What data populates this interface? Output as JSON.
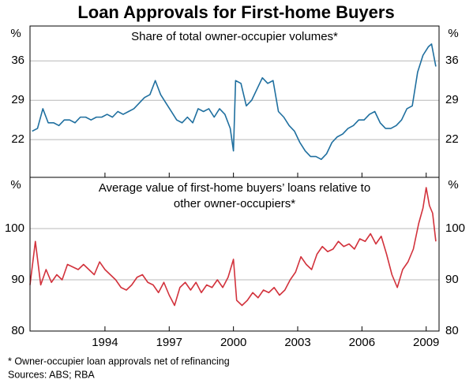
{
  "title": "Loan Approvals for First-home Buyers",
  "footnote": "*   Owner-occupier loan approvals net of refinancing",
  "sources": "Sources: ABS; RBA",
  "chart_data": [
    {
      "type": "line",
      "title": [
        "Share of total owner-occupier volumes*"
      ],
      "unit": "%",
      "xlim": [
        1990.5,
        2009.6
      ],
      "xticks": [
        1994,
        1997,
        2000,
        2003,
        2006,
        2009
      ],
      "show_xtick_labels": false,
      "ylim": [
        15.3,
        42.2
      ],
      "yticks": [
        22,
        29,
        36
      ],
      "grid": true,
      "series": [
        {
          "color": "#1f6f9f",
          "x": [
            1990.6,
            1990.85,
            1991.1,
            1991.35,
            1991.6,
            1991.85,
            1992.1,
            1992.35,
            1992.6,
            1992.85,
            1993.1,
            1993.35,
            1993.6,
            1993.85,
            1994.1,
            1994.35,
            1994.6,
            1994.85,
            1995.1,
            1995.35,
            1995.6,
            1995.85,
            1996.1,
            1996.35,
            1996.6,
            1996.85,
            1997.1,
            1997.35,
            1997.6,
            1997.85,
            1998.1,
            1998.35,
            1998.6,
            1998.85,
            1999.1,
            1999.35,
            1999.6,
            1999.85,
            2000.0,
            2000.1,
            2000.35,
            2000.6,
            2000.85,
            2001.1,
            2001.35,
            2001.6,
            2001.85,
            2002.1,
            2002.35,
            2002.6,
            2002.85,
            2003.1,
            2003.35,
            2003.6,
            2003.85,
            2004.1,
            2004.35,
            2004.6,
            2004.85,
            2005.1,
            2005.35,
            2005.6,
            2005.85,
            2006.1,
            2006.35,
            2006.6,
            2006.85,
            2007.1,
            2007.35,
            2007.6,
            2007.85,
            2008.1,
            2008.35,
            2008.6,
            2008.85,
            2009.1,
            2009.25,
            2009.45
          ],
          "values": [
            23.5,
            24,
            27.5,
            25,
            25,
            24.5,
            25.5,
            25.5,
            25,
            26,
            26,
            25.5,
            26,
            26,
            26.5,
            26,
            27,
            26.5,
            27,
            27.5,
            28.5,
            29.5,
            30,
            32.5,
            30,
            28.5,
            27,
            25.5,
            25,
            26,
            25,
            27.5,
            27,
            27.5,
            26,
            27.5,
            26.5,
            24,
            20,
            32.5,
            32,
            28,
            29,
            31,
            33,
            32,
            32.5,
            27,
            26,
            24.5,
            23.5,
            21.5,
            20,
            19,
            19,
            18.5,
            19.5,
            21.5,
            22.5,
            23,
            24,
            24.5,
            25.5,
            25.5,
            26.5,
            27,
            25,
            24,
            24,
            24.5,
            25.5,
            27.5,
            28,
            34,
            37,
            38.5,
            39,
            35
          ]
        }
      ]
    },
    {
      "type": "line",
      "title": [
        "Average value of first-home buyers’ loans relative to",
        "other owner-occupiers*"
      ],
      "unit": "%",
      "xlim": [
        1990.5,
        2009.6
      ],
      "xticks": [
        1994,
        1997,
        2000,
        2003,
        2006,
        2009
      ],
      "show_xtick_labels": true,
      "ylim": [
        80,
        110
      ],
      "yticks": [
        80,
        90,
        100
      ],
      "grid": true,
      "series": [
        {
          "color": "#d2323c",
          "x": [
            1990.5,
            1990.75,
            1991.0,
            1991.25,
            1991.5,
            1991.75,
            1992.0,
            1992.25,
            1992.5,
            1992.75,
            1993.0,
            1993.25,
            1993.5,
            1993.75,
            1994.0,
            1994.25,
            1994.5,
            1994.75,
            1995.0,
            1995.25,
            1995.5,
            1995.75,
            1996.0,
            1996.25,
            1996.5,
            1996.75,
            1997.0,
            1997.25,
            1997.5,
            1997.75,
            1998.0,
            1998.25,
            1998.5,
            1998.75,
            1999.0,
            1999.25,
            1999.5,
            1999.75,
            2000.0,
            2000.15,
            2000.4,
            2000.65,
            2000.9,
            2001.15,
            2001.4,
            2001.65,
            2001.9,
            2002.15,
            2002.4,
            2002.65,
            2002.9,
            2003.15,
            2003.4,
            2003.65,
            2003.9,
            2004.15,
            2004.4,
            2004.65,
            2004.9,
            2005.15,
            2005.4,
            2005.65,
            2005.9,
            2006.15,
            2006.4,
            2006.65,
            2006.9,
            2007.15,
            2007.4,
            2007.65,
            2007.9,
            2008.15,
            2008.4,
            2008.65,
            2008.85,
            2009.0,
            2009.15,
            2009.3,
            2009.45
          ],
          "values": [
            89,
            97.5,
            89,
            92,
            89.5,
            91,
            90,
            93,
            92.5,
            92,
            93,
            92,
            91,
            93.5,
            92,
            91,
            90,
            88.5,
            88,
            89,
            90.5,
            91,
            89.5,
            89,
            87.5,
            89.5,
            87,
            85,
            88.5,
            89.5,
            88,
            89.5,
            87.5,
            89,
            88.5,
            90,
            88.5,
            90.5,
            94,
            86,
            85,
            86,
            87.5,
            86.5,
            88,
            87.5,
            88.5,
            87,
            88,
            90,
            91.5,
            94.5,
            93,
            92,
            95,
            96.5,
            95.5,
            96,
            97.5,
            96.5,
            97,
            96,
            98,
            97.5,
            99,
            97,
            98.5,
            95,
            91,
            88.5,
            92,
            93.5,
            96,
            101,
            104,
            108,
            104.5,
            103,
            97.5
          ]
        }
      ]
    }
  ]
}
